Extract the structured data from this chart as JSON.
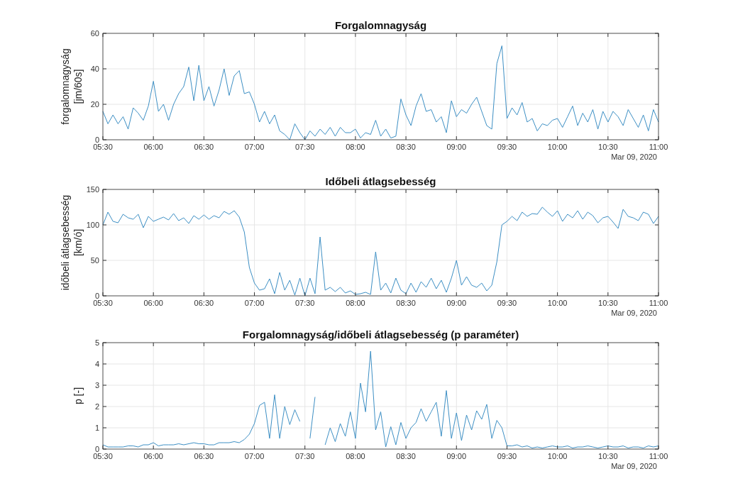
{
  "chart_data": [
    {
      "type": "line",
      "title": "Forgalomnagyság",
      "ylabel": "forgalomnagyság\n[jm/60s]",
      "color": "#3d8fc4",
      "grid": true,
      "annotations": [
        "Mar 09, 2020"
      ],
      "xlim": [
        5.5,
        11
      ],
      "xticks": [
        {
          "value": 5.5,
          "label": "05:30"
        },
        {
          "value": 6,
          "label": "06:00"
        },
        {
          "value": 6.5,
          "label": "06:30"
        },
        {
          "value": 7,
          "label": "07:00"
        },
        {
          "value": 7.5,
          "label": "07:30"
        },
        {
          "value": 8,
          "label": "08:00"
        },
        {
          "value": 8.5,
          "label": "08:30"
        },
        {
          "value": 9,
          "label": "09:00"
        },
        {
          "value": 9.5,
          "label": "09:30"
        },
        {
          "value": 10,
          "label": "10:00"
        },
        {
          "value": 10.5,
          "label": "10:30"
        },
        {
          "value": 11,
          "label": "11:00"
        }
      ],
      "ylim": [
        0,
        60
      ],
      "yticks": [
        0,
        20,
        40,
        60
      ],
      "x": [
        5.5,
        5.55,
        5.6,
        5.65,
        5.7,
        5.75,
        5.8,
        5.85,
        5.9,
        5.95,
        6,
        6.05,
        6.1,
        6.15,
        6.2,
        6.25,
        6.3,
        6.35,
        6.4,
        6.45,
        6.5,
        6.55,
        6.6,
        6.65,
        6.7,
        6.75,
        6.8,
        6.85,
        6.9,
        6.95,
        7,
        7.05,
        7.1,
        7.15,
        7.2,
        7.25,
        7.3,
        7.35,
        7.4,
        7.45,
        7.5,
        7.55,
        7.6,
        7.65,
        7.7,
        7.75,
        7.8,
        7.85,
        7.9,
        7.95,
        8,
        8.05,
        8.1,
        8.15,
        8.2,
        8.25,
        8.3,
        8.35,
        8.4,
        8.45,
        8.5,
        8.55,
        8.6,
        8.65,
        8.7,
        8.75,
        8.8,
        8.85,
        8.9,
        8.95,
        9,
        9.05,
        9.1,
        9.15,
        9.2,
        9.25,
        9.3,
        9.35,
        9.4,
        9.45,
        9.5,
        9.55,
        9.6,
        9.65,
        9.7,
        9.75,
        9.8,
        9.85,
        9.9,
        9.95,
        10,
        10.05,
        10.1,
        10.15,
        10.2,
        10.25,
        10.3,
        10.35,
        10.4,
        10.45,
        10.5,
        10.55,
        10.6,
        10.65,
        10.7,
        10.75,
        10.8,
        10.85,
        10.9,
        10.95,
        11
      ],
      "values": [
        16,
        9,
        14,
        9,
        13,
        6,
        18,
        15,
        11,
        19,
        33,
        16,
        20,
        11,
        20,
        26,
        30,
        41,
        22,
        42,
        22,
        30,
        19,
        28,
        40,
        25,
        36,
        39,
        26,
        27,
        20,
        10,
        16,
        9,
        14,
        5,
        3,
        0,
        9,
        4,
        0,
        5,
        2,
        6,
        3,
        7,
        2,
        7,
        4,
        4,
        6,
        1,
        4,
        3,
        11,
        2,
        6,
        1,
        2,
        23,
        14,
        8,
        19,
        26,
        16,
        17,
        10,
        13,
        4,
        22,
        13,
        17,
        15,
        20,
        24,
        16,
        8,
        6,
        43,
        53,
        12,
        18,
        14,
        21,
        10,
        12,
        5,
        9,
        8,
        11,
        12,
        7,
        13,
        19,
        8,
        15,
        10,
        17,
        6,
        16,
        10,
        16,
        13,
        8,
        17,
        12,
        7,
        14,
        5,
        17,
        10
      ]
    },
    {
      "type": "line",
      "title": "Időbeli átlagsebesség",
      "ylabel": "időbeli átlagsebesség\n[km/ó]",
      "color": "#3d8fc4",
      "grid": true,
      "annotations": [
        "Mar 09, 2020"
      ],
      "xlim": [
        5.5,
        11
      ],
      "xticks": [
        {
          "value": 5.5,
          "label": "05:30"
        },
        {
          "value": 6,
          "label": "06:00"
        },
        {
          "value": 6.5,
          "label": "06:30"
        },
        {
          "value": 7,
          "label": "07:00"
        },
        {
          "value": 7.5,
          "label": "07:30"
        },
        {
          "value": 8,
          "label": "08:00"
        },
        {
          "value": 8.5,
          "label": "08:30"
        },
        {
          "value": 9,
          "label": "09:00"
        },
        {
          "value": 9.5,
          "label": "09:30"
        },
        {
          "value": 10,
          "label": "10:00"
        },
        {
          "value": 10.5,
          "label": "10:30"
        },
        {
          "value": 11,
          "label": "11:00"
        }
      ],
      "ylim": [
        0,
        150
      ],
      "yticks": [
        0,
        50,
        100,
        150
      ],
      "x": [
        5.5,
        5.55,
        5.6,
        5.65,
        5.7,
        5.75,
        5.8,
        5.85,
        5.9,
        5.95,
        6,
        6.05,
        6.1,
        6.15,
        6.2,
        6.25,
        6.3,
        6.35,
        6.4,
        6.45,
        6.5,
        6.55,
        6.6,
        6.65,
        6.7,
        6.75,
        6.8,
        6.85,
        6.9,
        6.95,
        7,
        7.05,
        7.1,
        7.15,
        7.2,
        7.25,
        7.3,
        7.35,
        7.4,
        7.45,
        7.5,
        7.55,
        7.6,
        7.65,
        7.7,
        7.75,
        7.8,
        7.85,
        7.9,
        7.95,
        8,
        8.05,
        8.1,
        8.15,
        8.2,
        8.25,
        8.3,
        8.35,
        8.4,
        8.45,
        8.5,
        8.55,
        8.6,
        8.65,
        8.7,
        8.75,
        8.8,
        8.85,
        8.9,
        8.95,
        9,
        9.05,
        9.1,
        9.15,
        9.2,
        9.25,
        9.3,
        9.35,
        9.4,
        9.45,
        9.5,
        9.55,
        9.6,
        9.65,
        9.7,
        9.75,
        9.8,
        9.85,
        9.9,
        9.95,
        10,
        10.05,
        10.1,
        10.15,
        10.2,
        10.25,
        10.3,
        10.35,
        10.4,
        10.45,
        10.5,
        10.55,
        10.6,
        10.65,
        10.7,
        10.75,
        10.8,
        10.85,
        10.9,
        10.95,
        11
      ],
      "values": [
        100,
        118,
        105,
        103,
        115,
        110,
        108,
        115,
        96,
        112,
        105,
        108,
        111,
        107,
        116,
        106,
        110,
        102,
        113,
        108,
        114,
        108,
        113,
        110,
        119,
        115,
        120,
        111,
        90,
        40,
        18,
        8,
        10,
        24,
        3,
        33,
        8,
        22,
        1,
        25,
        0,
        25,
        3,
        83,
        8,
        12,
        6,
        12,
        4,
        7,
        2,
        3,
        5,
        2,
        62,
        8,
        18,
        4,
        25,
        8,
        3,
        18,
        5,
        20,
        12,
        25,
        10,
        22,
        5,
        25,
        50,
        15,
        27,
        15,
        12,
        18,
        7,
        15,
        48,
        100,
        105,
        112,
        106,
        118,
        112,
        116,
        115,
        125,
        118,
        112,
        120,
        105,
        115,
        110,
        120,
        108,
        118,
        113,
        103,
        110,
        112,
        104,
        95,
        122,
        112,
        110,
        106,
        118,
        115,
        102,
        112
      ]
    },
    {
      "type": "line",
      "title": "Forgalomnagyság/időbeli átlagsebesség (p paraméter)",
      "ylabel": "p [-]",
      "color": "#3d8fc4",
      "grid": true,
      "annotations": [
        "Mar 09, 2020"
      ],
      "xlim": [
        5.5,
        11
      ],
      "xticks": [
        {
          "value": 5.5,
          "label": "05:30"
        },
        {
          "value": 6,
          "label": "06:00"
        },
        {
          "value": 6.5,
          "label": "06:30"
        },
        {
          "value": 7,
          "label": "07:00"
        },
        {
          "value": 7.5,
          "label": "07:30"
        },
        {
          "value": 8,
          "label": "08:00"
        },
        {
          "value": 8.5,
          "label": "08:30"
        },
        {
          "value": 9,
          "label": "09:00"
        },
        {
          "value": 9.5,
          "label": "09:30"
        },
        {
          "value": 10,
          "label": "10:00"
        },
        {
          "value": 10.5,
          "label": "10:30"
        },
        {
          "value": 11,
          "label": "11:00"
        }
      ],
      "ylim": [
        0,
        5
      ],
      "yticks": [
        0,
        1,
        2,
        3,
        4,
        5
      ],
      "x": [
        5.5,
        5.55,
        5.6,
        5.65,
        5.7,
        5.75,
        5.8,
        5.85,
        5.9,
        5.95,
        6,
        6.05,
        6.1,
        6.15,
        6.2,
        6.25,
        6.3,
        6.35,
        6.4,
        6.45,
        6.5,
        6.55,
        6.6,
        6.65,
        6.7,
        6.75,
        6.8,
        6.85,
        6.9,
        6.95,
        7,
        7.05,
        7.1,
        7.15,
        7.2,
        7.25,
        7.3,
        7.35,
        7.4,
        7.45,
        7.5,
        7.55,
        7.6,
        7.65,
        7.7,
        7.75,
        7.8,
        7.85,
        7.9,
        7.95,
        8,
        8.05,
        8.1,
        8.15,
        8.2,
        8.25,
        8.3,
        8.35,
        8.4,
        8.45,
        8.5,
        8.55,
        8.6,
        8.65,
        8.7,
        8.75,
        8.8,
        8.85,
        8.9,
        8.95,
        9,
        9.05,
        9.1,
        9.15,
        9.2,
        9.25,
        9.3,
        9.35,
        9.4,
        9.45,
        9.5,
        9.55,
        9.6,
        9.65,
        9.7,
        9.75,
        9.8,
        9.85,
        9.9,
        9.95,
        10,
        10.05,
        10.1,
        10.15,
        10.2,
        10.25,
        10.3,
        10.35,
        10.4,
        10.45,
        10.5,
        10.55,
        10.6,
        10.65,
        10.7,
        10.75,
        10.8,
        10.85,
        10.9,
        10.95,
        11
      ],
      "values": [
        0.2,
        0.1,
        0.1,
        0.1,
        0.1,
        0.15,
        0.15,
        0.1,
        0.2,
        0.2,
        0.3,
        0.15,
        0.2,
        0.2,
        0.2,
        0.25,
        0.2,
        0.25,
        0.3,
        0.25,
        0.25,
        0.2,
        0.2,
        0.3,
        0.3,
        0.3,
        0.35,
        0.3,
        0.45,
        0.7,
        1.2,
        2.05,
        2.2,
        0.5,
        2.55,
        0.5,
        2,
        1.15,
        1.85,
        1.3,
        null,
        0.5,
        2.45,
        null,
        0.2,
        1,
        0.35,
        1.2,
        0.6,
        1.75,
        0.5,
        3.1,
        1.75,
        4.6,
        0.9,
        1.75,
        0.1,
        1.05,
        0.2,
        1.25,
        0.5,
        1,
        1.25,
        1.9,
        1.3,
        1.75,
        2.2,
        0.6,
        2.75,
        0.5,
        1.7,
        0.4,
        1.6,
        0.9,
        1.8,
        1.4,
        2.1,
        0.5,
        1.35,
        1,
        0.15,
        0.15,
        0.2,
        0.1,
        0.15,
        0.05,
        0.1,
        0.05,
        0.1,
        0.15,
        0.1,
        0.1,
        0.15,
        0.05,
        0.1,
        0.1,
        0.15,
        0.1,
        0.05,
        0.1,
        0.15,
        0.1,
        0.1,
        0.15,
        0.05,
        0.1,
        0.1,
        0.05,
        0.15,
        0.1,
        0.15
      ]
    }
  ]
}
